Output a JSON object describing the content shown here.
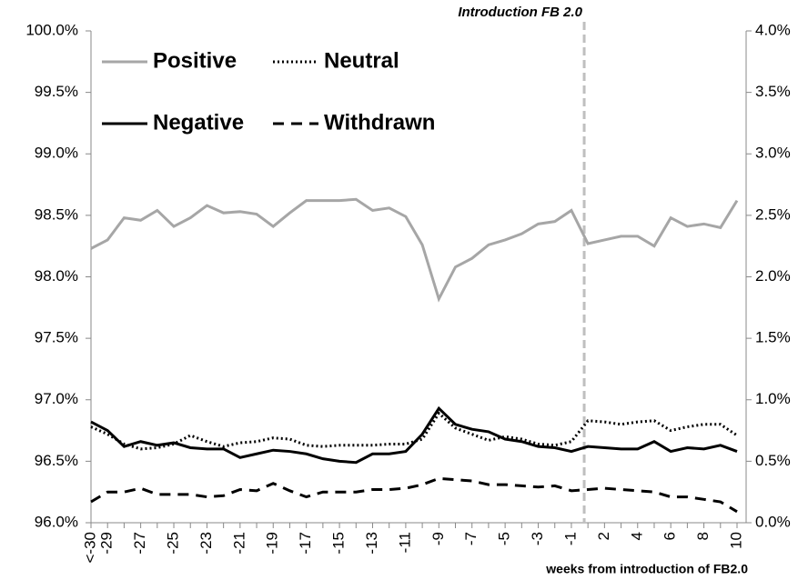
{
  "chart_data": {
    "type": "line",
    "annotation": "Introduction FB 2.0",
    "x_label": "weeks from introduction of FB2.0",
    "categories": [
      "<-30",
      "-29",
      null,
      "-27",
      null,
      "-25",
      null,
      "-23",
      null,
      "-21",
      null,
      "-19",
      null,
      "-17",
      null,
      "-15",
      null,
      "-13",
      null,
      "-11",
      null,
      "-9",
      null,
      "-7",
      null,
      "-5",
      null,
      "-3",
      null,
      "-1",
      null,
      "2",
      null,
      "4",
      null,
      "6",
      null,
      "8",
      null,
      "10"
    ],
    "ylim": [
      96,
      100
    ],
    "yticks": [
      {
        "value": 96,
        "label": "96.0%"
      },
      {
        "value": 96.5,
        "label": "96.5%"
      },
      {
        "value": 97,
        "label": "97.0%"
      },
      {
        "value": 97.5,
        "label": "97.5%"
      },
      {
        "value": 98,
        "label": "98.0%"
      },
      {
        "value": 98.5,
        "label": "98.5%"
      },
      {
        "value": 99,
        "label": "99.0%"
      },
      {
        "value": 99.5,
        "label": "99.5%"
      },
      {
        "value": 100,
        "label": "100.0%"
      }
    ],
    "y2lim": [
      0,
      4
    ],
    "y2ticks": [
      {
        "value": 0,
        "label": "0.0%"
      },
      {
        "value": 0.5,
        "label": "0.5%"
      },
      {
        "value": 1,
        "label": "1.0%"
      },
      {
        "value": 1.5,
        "label": "1.5%"
      },
      {
        "value": 2,
        "label": "2.0%"
      },
      {
        "value": 2.5,
        "label": "2.5%"
      },
      {
        "value": 3,
        "label": "3.0%"
      },
      {
        "value": 3.5,
        "label": "3.5%"
      },
      {
        "value": 4,
        "label": "4.0%"
      }
    ],
    "series": [
      {
        "name": "Positive",
        "color": "#a6a6a6",
        "dash": "solid",
        "values": [
          98.23,
          98.3,
          98.48,
          98.46,
          98.54,
          98.41,
          98.48,
          98.58,
          98.52,
          98.53,
          98.51,
          98.41,
          98.52,
          98.62,
          98.62,
          98.62,
          98.63,
          98.54,
          98.56,
          98.49,
          98.26,
          97.82,
          98.08,
          98.15,
          98.26,
          98.3,
          98.35,
          98.43,
          98.45,
          98.54,
          98.27,
          98.3,
          98.33,
          98.33,
          98.25,
          98.48,
          98.41,
          98.43,
          98.4,
          98.62
        ]
      },
      {
        "name": "Neutral",
        "color": "#000000",
        "dash": "dotted",
        "axis": "y2",
        "values": [
          0.78,
          0.72,
          0.64,
          0.6,
          0.61,
          0.64,
          0.71,
          0.66,
          0.62,
          0.65,
          0.66,
          0.69,
          0.68,
          0.63,
          0.62,
          0.63,
          0.63,
          0.63,
          0.64,
          0.64,
          0.68,
          0.89,
          0.77,
          0.72,
          0.67,
          0.7,
          0.68,
          0.64,
          0.63,
          0.66,
          0.83,
          0.82,
          0.8,
          0.82,
          0.83,
          0.75,
          0.78,
          0.8,
          0.8,
          0.71
        ]
      },
      {
        "name": "Negative",
        "color": "#000000",
        "dash": "solid",
        "axis": "y2",
        "values": [
          0.82,
          0.75,
          0.62,
          0.66,
          0.63,
          0.65,
          0.61,
          0.6,
          0.6,
          0.53,
          0.56,
          0.59,
          0.58,
          0.56,
          0.52,
          0.5,
          0.49,
          0.56,
          0.56,
          0.58,
          0.72,
          0.93,
          0.8,
          0.76,
          0.74,
          0.68,
          0.66,
          0.62,
          0.61,
          0.58,
          0.62,
          0.61,
          0.6,
          0.6,
          0.66,
          0.58,
          0.61,
          0.6,
          0.63,
          0.58
        ]
      },
      {
        "name": "Withdrawn",
        "color": "#000000",
        "dash": "dashed",
        "axis": "y2",
        "values": [
          0.17,
          0.25,
          0.25,
          0.28,
          0.23,
          0.23,
          0.23,
          0.21,
          0.22,
          0.27,
          0.26,
          0.32,
          0.26,
          0.21,
          0.25,
          0.25,
          0.25,
          0.27,
          0.27,
          0.28,
          0.31,
          0.36,
          0.35,
          0.34,
          0.31,
          0.31,
          0.3,
          0.29,
          0.3,
          0.26,
          0.27,
          0.28,
          0.27,
          0.26,
          0.25,
          0.21,
          0.21,
          0.19,
          0.17,
          0.09
        ]
      }
    ]
  }
}
